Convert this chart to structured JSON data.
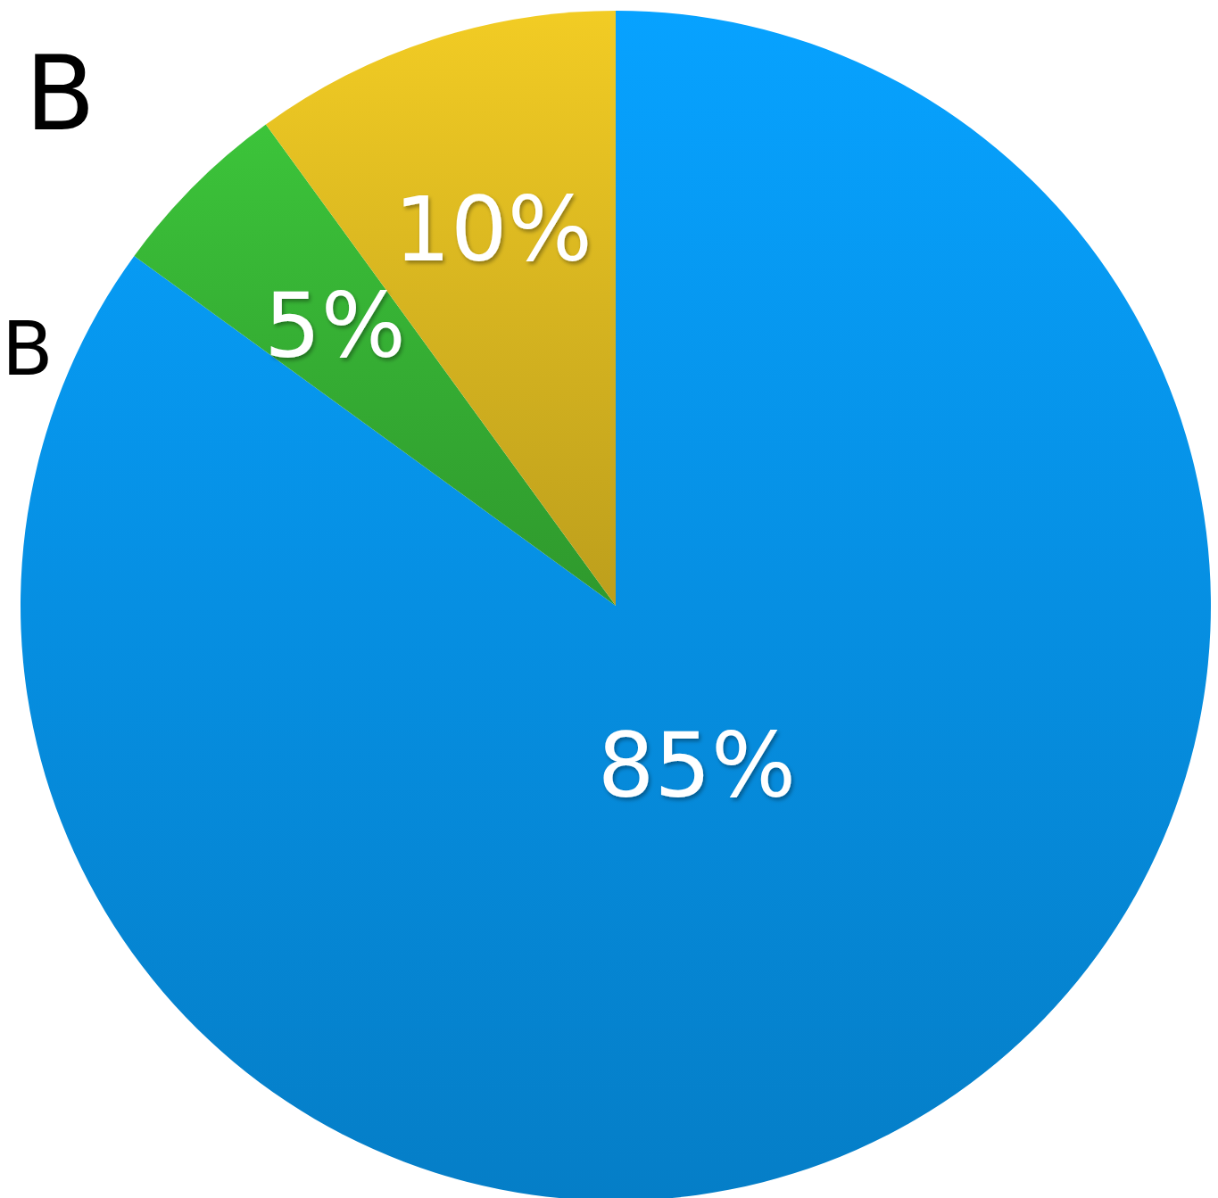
{
  "chart_data": {
    "type": "pie",
    "categories": [
      null,
      null,
      null
    ],
    "values": [
      85,
      5,
      10
    ],
    "colors": [
      "#068fe2",
      "#35ad33",
      "#d6b420"
    ],
    "value_labels": [
      "85%",
      "5%",
      "10%"
    ],
    "annotations": [
      "B",
      "B"
    ]
  }
}
